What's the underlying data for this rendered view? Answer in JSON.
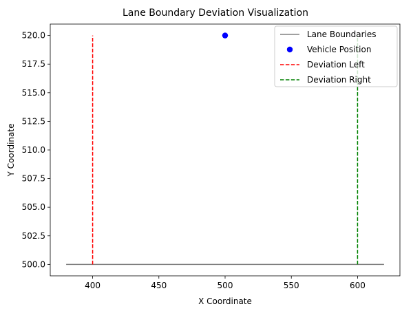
{
  "chart_data": {
    "type": "line",
    "title": "Lane Boundary Deviation Visualization",
    "xlabel": "X Coordinate",
    "ylabel": "Y Coordinate",
    "xlim": [
      368,
      632
    ],
    "ylim": [
      499.0,
      521.0
    ],
    "xticks": [
      400,
      450,
      500,
      550,
      600
    ],
    "yticks": [
      500.0,
      502.5,
      505.0,
      507.5,
      510.0,
      512.5,
      515.0,
      517.5,
      520.0
    ],
    "grid": false,
    "legend_position": "top-right",
    "series": [
      {
        "name": "Lane Boundaries",
        "kind": "line",
        "style": "solid",
        "color": "#808080",
        "x": [
          380,
          620
        ],
        "y": [
          500,
          500
        ]
      },
      {
        "name": "Vehicle Position",
        "kind": "scatter",
        "color": "#0000ff",
        "x": [
          500
        ],
        "y": [
          520
        ]
      },
      {
        "name": "Deviation Left",
        "kind": "line",
        "style": "dashed",
        "color": "#ff0000",
        "x": [
          400,
          400
        ],
        "y": [
          500,
          520
        ]
      },
      {
        "name": "Deviation Right",
        "kind": "line",
        "style": "dashed",
        "color": "#008000",
        "x": [
          600,
          600
        ],
        "y": [
          500,
          520
        ]
      }
    ]
  }
}
